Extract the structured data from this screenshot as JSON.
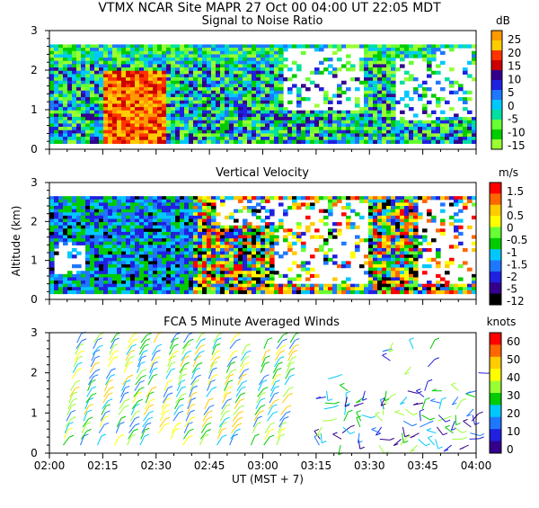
{
  "header": {
    "title_line": "VTMX   NCAR Site   MAPR 27 Oct 00   04:00 UT   22:05   MDT"
  },
  "chart_data": [
    {
      "type": "heatmap",
      "title": "Signal to Noise Ratio",
      "units": "dB",
      "ylabel": "",
      "ylim": [
        0,
        3
      ],
      "yticks": [
        "0",
        "1",
        "2",
        "3"
      ],
      "colorbar_labels": [
        "25",
        "20",
        "15",
        "10",
        "5",
        "0",
        "-5",
        "-10",
        "-15"
      ],
      "colors": [
        "#ff9900",
        "#ffcc00",
        "#ff3300",
        "#cc0000",
        "#33008c",
        "#2020e0",
        "#1e78ff",
        "#00c8ff",
        "#00e0a0",
        "#66ff33",
        "#00cc00",
        "#99ff33"
      ],
      "values_description_visible": false
    },
    {
      "type": "heatmap",
      "title": "Vertical Velocity",
      "units": "m/s",
      "ylabel": "Altitude (km)",
      "ylim": [
        0,
        3
      ],
      "yticks": [
        "0",
        "1",
        "2",
        "3"
      ],
      "colorbar_labels": [
        "1.5",
        "1",
        "0.5",
        "0",
        "-0.5",
        "-1",
        "-1.5",
        "-2",
        "-5",
        "-12"
      ],
      "colors": [
        "#ff0000",
        "#ff6600",
        "#ffcc00",
        "#ffff00",
        "#66ff33",
        "#00cc00",
        "#00c8ff",
        "#1e78ff",
        "#2020e0",
        "#33008c",
        "#000000"
      ]
    },
    {
      "type": "scatter",
      "title": "FCA 5 Minute Averaged Winds",
      "units": "knots",
      "ylabel": "",
      "ylim": [
        0,
        3
      ],
      "yticks": [
        "0",
        "1",
        "2",
        "3"
      ],
      "colorbar_labels": [
        "60",
        "50",
        "40",
        "30",
        "20",
        "10",
        "0"
      ],
      "colors": [
        "#ff0000",
        "#ff6600",
        "#ffcc00",
        "#ffff00",
        "#99ff33",
        "#00cc00",
        "#00c8ff",
        "#1e78ff",
        "#2020e0",
        "#33008c"
      ],
      "xlabel": "UT   (MST + 7)",
      "xticks": [
        "02:00",
        "02:15",
        "02:30",
        "02:45",
        "03:00",
        "03:15",
        "03:30",
        "03:45",
        "04:00"
      ]
    }
  ]
}
